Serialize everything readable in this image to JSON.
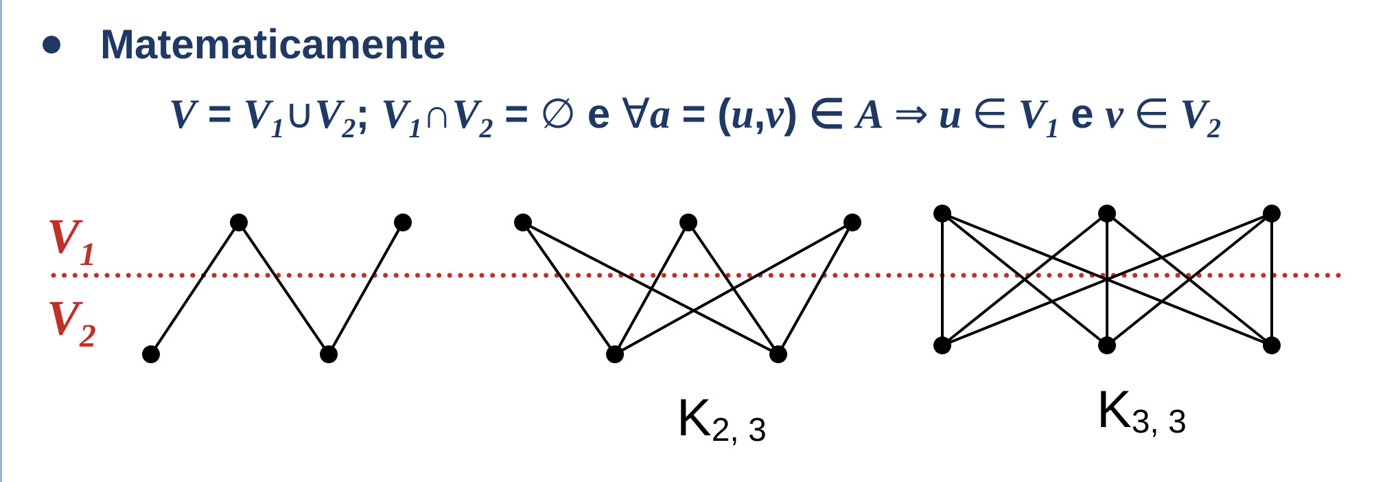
{
  "heading": "Matematicamente",
  "formula": {
    "V": "V",
    "eq": " = ",
    "V1": "V",
    "s1": "1",
    "union": "∪",
    "V2": "V",
    "s2": "2",
    "semi": "; ",
    "V1b": "V",
    "s1b": "1",
    "inter": "∩",
    "V2b": "V",
    "s2b": "2",
    "eq2": " = ",
    "empty": "∅",
    "e1": " e ",
    "forall": "∀",
    "a": "a",
    "eq3": " = (",
    "u": "u",
    "comma": ",",
    "v": "v",
    "close": ") ∈ ",
    "A": "A",
    "implies": " ⇒ ",
    "u2": "u",
    "in1": " ∈ ",
    "V1c": "V",
    "s1c": "1",
    "e2": " e ",
    "v2": "v",
    "in2": " ∈ ",
    "V2c": "V",
    "s2c": "2"
  },
  "partition_labels": {
    "top": "V",
    "top_sub": "1",
    "bottom": "V",
    "bottom_sub": "2"
  },
  "graphs": [
    {
      "name": "",
      "top_vertices": 2,
      "bottom_vertices": 2,
      "edges": [
        [
          0,
          0
        ],
        [
          0,
          1
        ],
        [
          1,
          1
        ]
      ]
    },
    {
      "name": "K",
      "name_sub": "2, 3",
      "top_vertices": 3,
      "bottom_vertices": 2
    },
    {
      "name": "K",
      "name_sub": "3, 3",
      "top_vertices": 3,
      "bottom_vertices": 3
    }
  ],
  "colors": {
    "text": "#1f3864",
    "partition": "#c0302a",
    "graph": "#000000"
  }
}
